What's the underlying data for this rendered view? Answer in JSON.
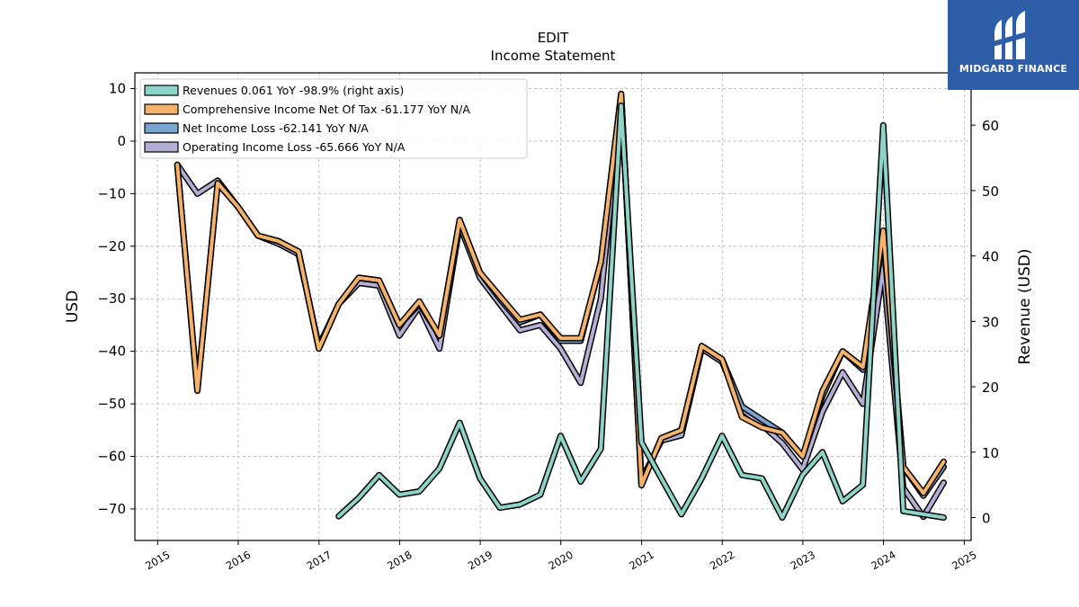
{
  "brand": {
    "name": "MIDGARD FINANCE",
    "background": "#2f5ea8"
  },
  "chart_data": {
    "type": "line",
    "title": "EDIT",
    "subtitle": "Income Statement",
    "ylabel": "USD",
    "ylabel_right": "Revenue (USD)",
    "ylim": [
      -76,
      13
    ],
    "ylim_right": [
      -3.5,
      68
    ],
    "xlim": [
      "2014-09-20",
      "2025-02-01"
    ],
    "yticks": [
      10,
      0,
      -10,
      -20,
      -30,
      -40,
      -50,
      -60,
      -70
    ],
    "yticks_right": [
      60,
      50,
      40,
      30,
      20,
      10,
      0
    ],
    "xticks": [
      "2015",
      "2016",
      "2017",
      "2018",
      "2019",
      "2020",
      "2021",
      "2022",
      "2023",
      "2024",
      "2025"
    ],
    "grid": true,
    "legend_position": "top-left",
    "series": [
      {
        "name": "Operating Income Loss  -65.666 YoY N/A",
        "color": "#b3aed4",
        "axis": "left",
        "points": [
          [
            "2015-03-31",
            -4.5
          ],
          [
            "2015-06-30",
            -10
          ],
          [
            "2015-09-30",
            -7.5
          ],
          [
            "2015-12-31",
            -12.5
          ],
          [
            "2016-03-31",
            -18
          ],
          [
            "2016-06-30",
            -19.5
          ],
          [
            "2016-09-30",
            -21.5
          ],
          [
            "2016-12-31",
            -39
          ],
          [
            "2017-03-31",
            -31
          ],
          [
            "2017-06-30",
            -27
          ],
          [
            "2017-09-30",
            -27.5
          ],
          [
            "2017-12-31",
            -37
          ],
          [
            "2018-03-31",
            -31.5
          ],
          [
            "2018-06-30",
            -39.5
          ],
          [
            "2018-09-30",
            -16
          ],
          [
            "2018-12-31",
            -26
          ],
          [
            "2019-03-31",
            -31
          ],
          [
            "2019-06-30",
            -36
          ],
          [
            "2019-09-30",
            -35
          ],
          [
            "2019-12-31",
            -39.5
          ],
          [
            "2020-03-31",
            -46
          ],
          [
            "2020-06-30",
            -30
          ],
          [
            "2020-09-30",
            8.5
          ],
          [
            "2020-12-31",
            -64.5
          ],
          [
            "2021-03-31",
            -57
          ],
          [
            "2021-06-30",
            -56
          ],
          [
            "2021-09-30",
            -39.5
          ],
          [
            "2021-12-31",
            -42
          ],
          [
            "2022-03-31",
            -51
          ],
          [
            "2022-06-30",
            -54
          ],
          [
            "2022-09-30",
            -57.5
          ],
          [
            "2022-12-31",
            -62.5
          ],
          [
            "2023-03-31",
            -51.5
          ],
          [
            "2023-06-30",
            -44
          ],
          [
            "2023-09-30",
            -50
          ],
          [
            "2023-12-31",
            -24
          ],
          [
            "2024-03-31",
            -66
          ],
          [
            "2024-06-30",
            -71.5
          ],
          [
            "2024-09-30",
            -65
          ]
        ]
      },
      {
        "name": "Net Income Loss  -62.141 YoY N/A",
        "color": "#7aa6cf",
        "axis": "left",
        "points": [
          [
            "2015-03-31",
            -4.5
          ],
          [
            "2015-06-30",
            -47.5
          ],
          [
            "2015-09-30",
            -8
          ],
          [
            "2015-12-31",
            -12.5
          ],
          [
            "2016-03-31",
            -18
          ],
          [
            "2016-06-30",
            -19
          ],
          [
            "2016-09-30",
            -21
          ],
          [
            "2016-12-31",
            -39.5
          ],
          [
            "2017-03-31",
            -31
          ],
          [
            "2017-06-30",
            -26
          ],
          [
            "2017-09-30",
            -26.5
          ],
          [
            "2017-12-31",
            -35
          ],
          [
            "2018-03-31",
            -31
          ],
          [
            "2018-06-30",
            -37
          ],
          [
            "2018-09-30",
            -15
          ],
          [
            "2018-12-31",
            -25
          ],
          [
            "2019-03-31",
            -30
          ],
          [
            "2019-06-30",
            -34.5
          ],
          [
            "2019-09-30",
            -33
          ],
          [
            "2019-12-31",
            -38
          ],
          [
            "2020-03-31",
            -38
          ],
          [
            "2020-06-30",
            -23
          ],
          [
            "2020-09-30",
            9
          ],
          [
            "2020-12-31",
            -65.5
          ],
          [
            "2021-03-31",
            -56.5
          ],
          [
            "2021-06-30",
            -55
          ],
          [
            "2021-09-30",
            -39
          ],
          [
            "2021-12-31",
            -41.5
          ],
          [
            "2022-03-31",
            -50.5
          ],
          [
            "2022-06-30",
            -53
          ],
          [
            "2022-09-30",
            -55.5
          ],
          [
            "2022-12-31",
            -60
          ],
          [
            "2023-03-31",
            -48.5
          ],
          [
            "2023-06-30",
            -40
          ],
          [
            "2023-09-30",
            -43.5
          ],
          [
            "2023-12-31",
            -18
          ],
          [
            "2024-03-31",
            -62
          ],
          [
            "2024-06-30",
            -67.5
          ],
          [
            "2024-09-30",
            -62
          ]
        ]
      },
      {
        "name": "Comprehensive Income Net Of Tax  -61.177 YoY N/A",
        "color": "#f5b26b",
        "axis": "left",
        "points": [
          [
            "2015-03-31",
            -4.5
          ],
          [
            "2015-06-30",
            -47.5
          ],
          [
            "2015-09-30",
            -8
          ],
          [
            "2015-12-31",
            -12.5
          ],
          [
            "2016-03-31",
            -18
          ],
          [
            "2016-06-30",
            -19
          ],
          [
            "2016-09-30",
            -21
          ],
          [
            "2016-12-31",
            -39.5
          ],
          [
            "2017-03-31",
            -31
          ],
          [
            "2017-06-30",
            -26
          ],
          [
            "2017-09-30",
            -26.5
          ],
          [
            "2017-12-31",
            -35
          ],
          [
            "2018-03-31",
            -30.5
          ],
          [
            "2018-06-30",
            -37
          ],
          [
            "2018-09-30",
            -15
          ],
          [
            "2018-12-31",
            -25
          ],
          [
            "2019-03-31",
            -29.5
          ],
          [
            "2019-06-30",
            -34
          ],
          [
            "2019-09-30",
            -33
          ],
          [
            "2019-12-31",
            -37.5
          ],
          [
            "2020-03-31",
            -37.5
          ],
          [
            "2020-06-30",
            -23
          ],
          [
            "2020-09-30",
            9
          ],
          [
            "2020-12-31",
            -65.5
          ],
          [
            "2021-03-31",
            -56.5
          ],
          [
            "2021-06-30",
            -55
          ],
          [
            "2021-09-30",
            -39
          ],
          [
            "2021-12-31",
            -41.5
          ],
          [
            "2022-03-31",
            -52.5
          ],
          [
            "2022-06-30",
            -54.5
          ],
          [
            "2022-09-30",
            -55.5
          ],
          [
            "2022-12-31",
            -60
          ],
          [
            "2023-03-31",
            -47.5
          ],
          [
            "2023-06-30",
            -40
          ],
          [
            "2023-09-30",
            -43
          ],
          [
            "2023-12-31",
            -17
          ],
          [
            "2024-03-31",
            -62
          ],
          [
            "2024-06-30",
            -67
          ],
          [
            "2024-09-30",
            -61
          ]
        ]
      },
      {
        "name": "Revenues  0.061 YoY -98.9% (right axis)",
        "color": "#8dd3c7",
        "axis": "right",
        "points": [
          [
            "2017-03-31",
            0.2
          ],
          [
            "2017-06-30",
            3
          ],
          [
            "2017-09-30",
            6.5
          ],
          [
            "2017-12-31",
            3.5
          ],
          [
            "2018-03-31",
            4
          ],
          [
            "2018-06-30",
            7.5
          ],
          [
            "2018-09-30",
            14.5
          ],
          [
            "2018-12-31",
            6
          ],
          [
            "2019-03-31",
            1.5
          ],
          [
            "2019-06-30",
            2
          ],
          [
            "2019-09-30",
            3.5
          ],
          [
            "2019-12-31",
            12.5
          ],
          [
            "2020-03-31",
            5.5
          ],
          [
            "2020-06-30",
            10.5
          ],
          [
            "2020-09-30",
            63
          ],
          [
            "2020-12-31",
            11.5
          ],
          [
            "2021-03-31",
            6
          ],
          [
            "2021-06-30",
            0.5
          ],
          [
            "2021-09-30",
            6
          ],
          [
            "2021-12-31",
            12.5
          ],
          [
            "2022-03-31",
            6.5
          ],
          [
            "2022-06-30",
            6
          ],
          [
            "2022-09-30",
            0
          ],
          [
            "2022-12-31",
            6.5
          ],
          [
            "2023-03-31",
            10
          ],
          [
            "2023-06-30",
            2.5
          ],
          [
            "2023-09-30",
            5
          ],
          [
            "2023-12-31",
            60
          ],
          [
            "2024-03-31",
            1
          ],
          [
            "2024-06-30",
            0.5
          ],
          [
            "2024-09-30",
            0
          ]
        ]
      }
    ],
    "legend_order": [
      "Revenues  0.061 YoY -98.9% (right axis)",
      "Comprehensive Income Net Of Tax  -61.177 YoY N/A",
      "Net Income Loss  -62.141 YoY N/A",
      "Operating Income Loss  -65.666 YoY N/A"
    ]
  }
}
